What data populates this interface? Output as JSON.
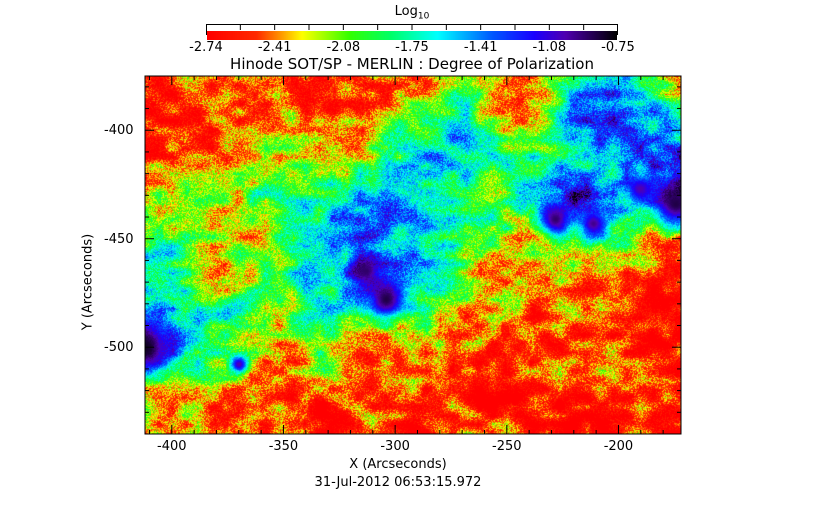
{
  "chart_data": {
    "type": "heatmap",
    "title": "Hinode SOT/SP - MERLIN : Degree of Polarization",
    "xlabel": "X (Arcseconds)",
    "ylabel": "Y (Arcseconds)",
    "subtitle": "31-Jul-2012 06:53:15.972",
    "xlim": [
      -412,
      -172
    ],
    "ylim": [
      -540,
      -375
    ],
    "xticks": [
      "-400",
      "-350",
      "-300",
      "-250",
      "-200"
    ],
    "xtick_values": [
      -400,
      -350,
      -300,
      -250,
      -200
    ],
    "yticks": [
      "-400",
      "-450",
      "-500"
    ],
    "ytick_values": [
      -400,
      -450,
      -500
    ],
    "colorbar": {
      "label": "Log",
      "label_sub": "10",
      "range": [
        -2.74,
        -0.75
      ],
      "ticks": [
        "-2.74",
        "-2.41",
        "-2.08",
        "-1.75",
        "-1.41",
        "-1.08",
        "-0.75"
      ],
      "colormap": [
        {
          "v": -2.74,
          "color": "#ff0000"
        },
        {
          "v": -2.5,
          "color": "#ff2a00"
        },
        {
          "v": -2.38,
          "color": "#ff9900"
        },
        {
          "v": -2.28,
          "color": "#ffff00"
        },
        {
          "v": -2.05,
          "color": "#33ff00"
        },
        {
          "v": -1.85,
          "color": "#00ff66"
        },
        {
          "v": -1.62,
          "color": "#00ffff"
        },
        {
          "v": -1.35,
          "color": "#0055ff"
        },
        {
          "v": -1.15,
          "color": "#1a00ff"
        },
        {
          "v": -1.0,
          "color": "#5000b0"
        },
        {
          "v": -0.75,
          "color": "#000000"
        }
      ]
    },
    "grid_note_units": "log10 degree of polarization, coarse 16x10 grid, rows top (y=-375) to bottom (y=-540), cols left (x=-412) to right (x=-172)",
    "grid": [
      [
        -2.6,
        -2.6,
        -2.6,
        -2.6,
        -2.6,
        -2.6,
        -2.5,
        -2.5,
        -2.3,
        -1.8,
        -2.4,
        -2.5,
        -1.6,
        -1.5,
        -1.9,
        -2.2
      ],
      [
        -2.6,
        -2.6,
        -2.6,
        -2.5,
        -2.4,
        -2.5,
        -2.5,
        -2.3,
        -2.0,
        -1.6,
        -2.4,
        -2.4,
        -1.5,
        -1.4,
        -1.5,
        -1.8
      ],
      [
        -2.6,
        -2.6,
        -2.5,
        -2.4,
        -2.2,
        -2.3,
        -2.1,
        -1.9,
        -1.6,
        -1.7,
        -2.0,
        -1.9,
        -1.6,
        -1.6,
        -1.4,
        -1.0
      ],
      [
        -2.0,
        -2.2,
        -2.3,
        -2.0,
        -1.9,
        -1.8,
        -1.7,
        -1.6,
        -1.7,
        -1.8,
        -1.9,
        -1.7,
        -1.1,
        -1.5,
        -1.7,
        -1.2
      ],
      [
        -2.0,
        -1.8,
        -2.1,
        -2.2,
        -1.7,
        -1.7,
        -1.3,
        -1.6,
        -1.7,
        -2.0,
        -2.1,
        -2.2,
        -2.0,
        -1.9,
        -2.2,
        -2.3
      ],
      [
        -1.9,
        -2.0,
        -2.4,
        -2.0,
        -1.8,
        -1.6,
        -1.2,
        -1.6,
        -1.8,
        -2.2,
        -2.5,
        -2.5,
        -2.5,
        -2.5,
        -2.5,
        -2.5
      ],
      [
        -1.2,
        -1.6,
        -1.7,
        -1.8,
        -2.0,
        -1.8,
        -1.7,
        -2.0,
        -2.0,
        -2.3,
        -2.5,
        -2.6,
        -2.4,
        -2.5,
        -2.5,
        -2.6
      ],
      [
        -1.3,
        -1.7,
        -2.1,
        -2.3,
        -2.4,
        -2.1,
        -2.4,
        -2.5,
        -2.5,
        -2.5,
        -2.5,
        -2.6,
        -2.6,
        -2.5,
        -2.6,
        -2.6
      ],
      [
        -2.0,
        -2.2,
        -2.5,
        -2.6,
        -2.6,
        -2.5,
        -2.6,
        -2.6,
        -2.6,
        -2.6,
        -2.6,
        -2.6,
        -2.6,
        -2.6,
        -2.6,
        -2.6
      ],
      [
        -2.3,
        -2.4,
        -2.6,
        -2.6,
        -2.6,
        -2.6,
        -2.6,
        -2.6,
        -2.6,
        -2.6,
        -2.6,
        -2.6,
        -2.6,
        -2.6,
        -2.6,
        -2.6
      ]
    ],
    "spots": [
      {
        "x": -304,
        "y": -478,
        "r": 7,
        "v": -0.85
      },
      {
        "x": -313,
        "y": -465,
        "r": 5,
        "v": -0.9
      },
      {
        "x": -412,
        "y": -500,
        "r": 9,
        "v": -0.8
      },
      {
        "x": -174,
        "y": -434,
        "r": 8,
        "v": -0.85
      },
      {
        "x": -228,
        "y": -441,
        "r": 6,
        "v": -0.9
      },
      {
        "x": -211,
        "y": -443,
        "r": 5,
        "v": -0.95
      },
      {
        "x": -370,
        "y": -508,
        "r": 3,
        "v": -1.0
      },
      {
        "x": -190,
        "y": -427,
        "r": 5,
        "v": -1.0
      }
    ]
  }
}
